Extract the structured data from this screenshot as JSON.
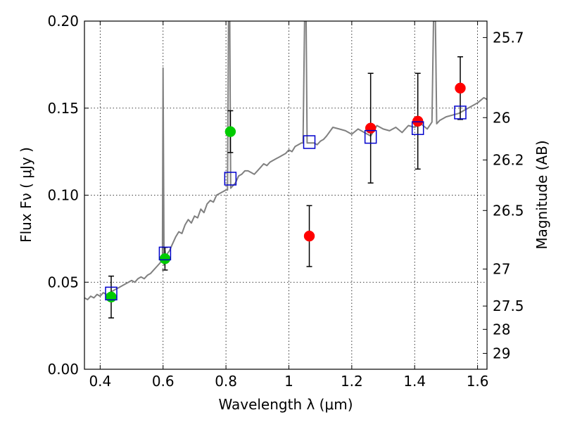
{
  "chart_data": {
    "type": "scatter",
    "xlabel": "Wavelength  λ (μm)",
    "ylabel": "Flux  Fν  ( μJy )",
    "y2label": "Magnitude (AB)",
    "xlim": [
      0.35,
      1.63
    ],
    "ylim": [
      0.0,
      0.2
    ],
    "grid": true,
    "x_ticks": [
      0.4,
      0.6,
      0.8,
      1.0,
      1.2,
      1.4,
      1.6
    ],
    "x_tick_labels": [
      "0.4",
      "0.6",
      "0.8",
      "1",
      "1.2",
      "1.4",
      "1.6"
    ],
    "y_ticks": [
      0.0,
      0.05,
      0.1,
      0.15,
      0.2
    ],
    "y_tick_labels": [
      "0.00",
      "0.05",
      "0.10",
      "0.15",
      "0.20"
    ],
    "mag_ticks": [
      25.7,
      26,
      26.2,
      26.5,
      27,
      27.5,
      28,
      29
    ],
    "mag_tick_labels": [
      "25.7",
      "26",
      "26.2",
      "26.5",
      "27",
      "27.5",
      "28",
      "29"
    ],
    "series": [
      {
        "kind": "points",
        "marker": "circle",
        "color": "#00cc00",
        "points": [
          {
            "x": 0.435,
            "y": 0.0415,
            "yerr": 0.012
          },
          {
            "x": 0.606,
            "y": 0.0635,
            "yerr": 0.0065
          },
          {
            "x": 0.814,
            "y": 0.1365,
            "yerr": 0.012
          }
        ]
      },
      {
        "kind": "points",
        "marker": "circle",
        "color": "#ff0000",
        "points": [
          {
            "x": 1.065,
            "y": 0.0765,
            "yerr": 0.0175
          },
          {
            "x": 1.26,
            "y": 0.1385,
            "yerr": 0.0315
          },
          {
            "x": 1.41,
            "y": 0.1425,
            "yerr": 0.0275
          },
          {
            "x": 1.545,
            "y": 0.1615,
            "yerr": 0.018
          }
        ]
      },
      {
        "kind": "points",
        "marker": "open-square",
        "color": "#0000cc",
        "points": [
          {
            "x": 0.435,
            "y": 0.0435
          },
          {
            "x": 0.606,
            "y": 0.0665
          },
          {
            "x": 0.814,
            "y": 0.1095
          },
          {
            "x": 1.065,
            "y": 0.1305
          },
          {
            "x": 1.26,
            "y": 0.1335
          },
          {
            "x": 1.41,
            "y": 0.1385
          },
          {
            "x": 1.545,
            "y": 0.1475
          }
        ]
      },
      {
        "kind": "spectrum",
        "color": "#808080",
        "points": [
          [
            0.35,
            0.041
          ],
          [
            0.36,
            0.04
          ],
          [
            0.37,
            0.042
          ],
          [
            0.38,
            0.041
          ],
          [
            0.39,
            0.043
          ],
          [
            0.4,
            0.042
          ],
          [
            0.41,
            0.044
          ],
          [
            0.42,
            0.043
          ],
          [
            0.43,
            0.044
          ],
          [
            0.44,
            0.045
          ],
          [
            0.45,
            0.046
          ],
          [
            0.46,
            0.047
          ],
          [
            0.47,
            0.048
          ],
          [
            0.48,
            0.049
          ],
          [
            0.49,
            0.05
          ],
          [
            0.5,
            0.051
          ],
          [
            0.51,
            0.05
          ],
          [
            0.52,
            0.052
          ],
          [
            0.53,
            0.053
          ],
          [
            0.54,
            0.052
          ],
          [
            0.55,
            0.054
          ],
          [
            0.56,
            0.055
          ],
          [
            0.57,
            0.057
          ],
          [
            0.58,
            0.059
          ],
          [
            0.59,
            0.061
          ],
          [
            0.598,
            0.063
          ],
          [
            0.6,
            0.173
          ],
          [
            0.603,
            0.06
          ],
          [
            0.606,
            0.068
          ],
          [
            0.609,
            0.063
          ],
          [
            0.612,
            0.066
          ],
          [
            0.62,
            0.068
          ],
          [
            0.63,
            0.072
          ],
          [
            0.64,
            0.076
          ],
          [
            0.65,
            0.079
          ],
          [
            0.66,
            0.078
          ],
          [
            0.67,
            0.083
          ],
          [
            0.68,
            0.086
          ],
          [
            0.69,
            0.084
          ],
          [
            0.7,
            0.088
          ],
          [
            0.71,
            0.087
          ],
          [
            0.72,
            0.092
          ],
          [
            0.73,
            0.09
          ],
          [
            0.74,
            0.095
          ],
          [
            0.75,
            0.097
          ],
          [
            0.76,
            0.096
          ],
          [
            0.77,
            0.1
          ],
          [
            0.78,
            0.101
          ],
          [
            0.79,
            0.102
          ],
          [
            0.8,
            0.103
          ],
          [
            0.805,
            0.103
          ],
          [
            0.808,
            0.2
          ],
          [
            0.812,
            0.2
          ],
          [
            0.815,
            0.104
          ],
          [
            0.82,
            0.105
          ],
          [
            0.83,
            0.107
          ],
          [
            0.84,
            0.111
          ],
          [
            0.85,
            0.112
          ],
          [
            0.86,
            0.114
          ],
          [
            0.87,
            0.114
          ],
          [
            0.88,
            0.113
          ],
          [
            0.89,
            0.112
          ],
          [
            0.9,
            0.114
          ],
          [
            0.91,
            0.116
          ],
          [
            0.92,
            0.118
          ],
          [
            0.93,
            0.117
          ],
          [
            0.94,
            0.119
          ],
          [
            0.95,
            0.12
          ],
          [
            0.96,
            0.121
          ],
          [
            0.97,
            0.122
          ],
          [
            0.98,
            0.123
          ],
          [
            0.99,
            0.124
          ],
          [
            1.0,
            0.126
          ],
          [
            1.01,
            0.125
          ],
          [
            1.02,
            0.128
          ],
          [
            1.03,
            0.129
          ],
          [
            1.04,
            0.13
          ],
          [
            1.045,
            0.13
          ],
          [
            1.05,
            0.2
          ],
          [
            1.055,
            0.2
          ],
          [
            1.058,
            0.13
          ],
          [
            1.065,
            0.13
          ],
          [
            1.08,
            0.13
          ],
          [
            1.09,
            0.129
          ],
          [
            1.1,
            0.131
          ],
          [
            1.11,
            0.132
          ],
          [
            1.12,
            0.134
          ],
          [
            1.14,
            0.139
          ],
          [
            1.16,
            0.138
          ],
          [
            1.18,
            0.137
          ],
          [
            1.2,
            0.135
          ],
          [
            1.22,
            0.138
          ],
          [
            1.24,
            0.136
          ],
          [
            1.26,
            0.134
          ],
          [
            1.28,
            0.14
          ],
          [
            1.3,
            0.138
          ],
          [
            1.32,
            0.137
          ],
          [
            1.34,
            0.139
          ],
          [
            1.36,
            0.136
          ],
          [
            1.38,
            0.14
          ],
          [
            1.4,
            0.139
          ],
          [
            1.42,
            0.141
          ],
          [
            1.44,
            0.138
          ],
          [
            1.455,
            0.142
          ],
          [
            1.46,
            0.2
          ],
          [
            1.466,
            0.2
          ],
          [
            1.47,
            0.141
          ],
          [
            1.48,
            0.143
          ],
          [
            1.5,
            0.145
          ],
          [
            1.52,
            0.146
          ],
          [
            1.54,
            0.147
          ],
          [
            1.56,
            0.149
          ],
          [
            1.58,
            0.151
          ],
          [
            1.6,
            0.153
          ],
          [
            1.62,
            0.156
          ],
          [
            1.63,
            0.155
          ]
        ]
      }
    ]
  }
}
